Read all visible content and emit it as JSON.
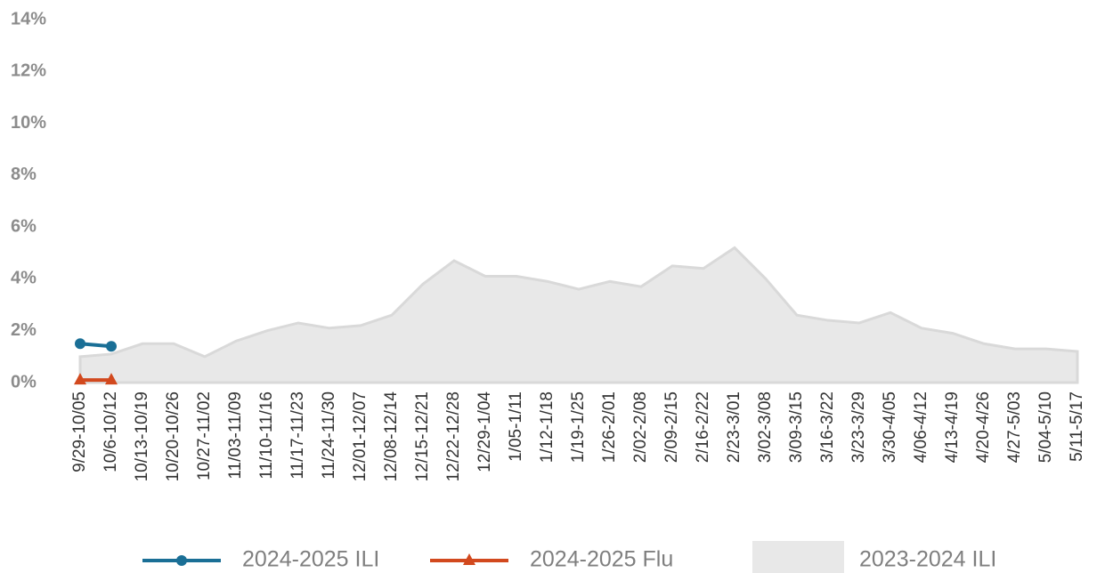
{
  "chart_data": {
    "type": "line",
    "categories": [
      "9/29-10/05",
      "10/6-10/12",
      "10/13-10/19",
      "10/20-10/26",
      "10/27-11/02",
      "11/03-11/09",
      "11/10-11/16",
      "11/17-11/23",
      "11/24-11/30",
      "12/01-12/07",
      "12/08-12/14",
      "12/15-12/21",
      "12/22-12/28",
      "12/29-1/04",
      "1/05-1/11",
      "1/12-1/18",
      "1/19-1/25",
      "1/26-2/01",
      "2/02-2/08",
      "2/09-2/15",
      "2/16-2/22",
      "2/23-3/01",
      "3/02-3/08",
      "3/09-3/15",
      "3/16-3/22",
      "3/23-3/29",
      "3/30-4/05",
      "4/06-4/12",
      "4/13-4/19",
      "4/20-4/26",
      "4/27-5/03",
      "5/04-5/10",
      "5/11-5/17"
    ],
    "series": [
      {
        "name": "2024-2025 ILI",
        "color": "#1a6f96",
        "marker": "circle",
        "values": [
          1.5,
          1.4,
          null,
          null,
          null,
          null,
          null,
          null,
          null,
          null,
          null,
          null,
          null,
          null,
          null,
          null,
          null,
          null,
          null,
          null,
          null,
          null,
          null,
          null,
          null,
          null,
          null,
          null,
          null,
          null,
          null,
          null,
          null
        ]
      },
      {
        "name": "2024-2025 Flu",
        "color": "#d2491e",
        "marker": "triangle",
        "values": [
          0.1,
          0.1,
          null,
          null,
          null,
          null,
          null,
          null,
          null,
          null,
          null,
          null,
          null,
          null,
          null,
          null,
          null,
          null,
          null,
          null,
          null,
          null,
          null,
          null,
          null,
          null,
          null,
          null,
          null,
          null,
          null,
          null,
          null
        ]
      },
      {
        "name": "2023-2024 ILI",
        "color": "#e8e8e8",
        "kind": "area",
        "values": [
          1.0,
          1.1,
          1.5,
          1.5,
          1.0,
          1.6,
          2.0,
          2.3,
          2.1,
          2.2,
          2.6,
          3.8,
          4.7,
          4.1,
          4.1,
          3.9,
          3.6,
          3.9,
          3.7,
          4.5,
          4.4,
          5.2,
          4.0,
          2.6,
          2.4,
          2.3,
          2.7,
          2.1,
          1.9,
          1.5,
          1.3,
          1.3,
          1.2
        ]
      }
    ],
    "ylim": [
      0,
      14
    ],
    "yticks": [
      {
        "value": 0,
        "label": "0%"
      },
      {
        "value": 2,
        "label": "2%"
      },
      {
        "value": 4,
        "label": "4%"
      },
      {
        "value": 6,
        "label": "6%"
      },
      {
        "value": 8,
        "label": "8%"
      },
      {
        "value": 10,
        "label": "10%"
      },
      {
        "value": 12,
        "label": "12%"
      },
      {
        "value": 14,
        "label": "14%"
      }
    ],
    "grid": false,
    "legend": "bottom"
  }
}
